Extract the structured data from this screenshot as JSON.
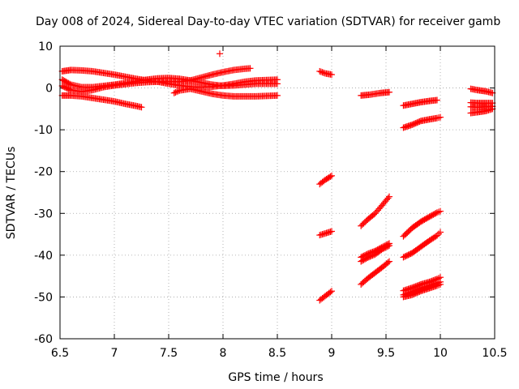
{
  "chart_data": {
    "type": "scatter",
    "title": "Day 008 of 2024, Sidereal Day-to-day VTEC variation (SDTVAR) for receiver gamb",
    "xlabel": "GPS time / hours",
    "ylabel": "SDTVAR / TECUs",
    "xlim": [
      6.5,
      10.5
    ],
    "ylim": [
      -60,
      10
    ],
    "xticks": [
      "6.5",
      "7",
      "7.5",
      "8",
      "8.5",
      "9",
      "9.5",
      "10",
      "10.5"
    ],
    "yticks": [
      "10",
      "0",
      "-10",
      "-20",
      "-30",
      "-40",
      "-50",
      "-60"
    ],
    "grid": true,
    "marker": "+",
    "color": "#ff0000",
    "series": [
      {
        "name": "trace-01",
        "points": [
          [
            6.52,
            4.0
          ],
          [
            6.6,
            4.3
          ],
          [
            6.7,
            4.2
          ],
          [
            6.8,
            4.0
          ],
          [
            6.9,
            3.6
          ],
          [
            7.0,
            3.2
          ],
          [
            7.1,
            2.7
          ],
          [
            7.2,
            2.2
          ],
          [
            7.3,
            1.8
          ],
          [
            7.4,
            1.5
          ],
          [
            7.5,
            1.0
          ],
          [
            7.6,
            0.6
          ],
          [
            7.7,
            0.3
          ],
          [
            7.8,
            0.2
          ],
          [
            7.9,
            0.3
          ],
          [
            8.0,
            0.6
          ],
          [
            8.1,
            1.0
          ],
          [
            8.2,
            1.5
          ],
          [
            8.3,
            1.8
          ],
          [
            8.4,
            1.9
          ],
          [
            8.5,
            2.0
          ]
        ]
      },
      {
        "name": "trace-02",
        "points": [
          [
            6.52,
            2.0
          ],
          [
            6.6,
            0.8
          ],
          [
            6.7,
            0.2
          ],
          [
            6.8,
            0.2
          ],
          [
            6.9,
            0.5
          ],
          [
            7.0,
            0.8
          ],
          [
            7.1,
            1.2
          ],
          [
            7.2,
            1.6
          ],
          [
            7.3,
            2.0
          ],
          [
            7.4,
            2.3
          ],
          [
            7.5,
            2.4
          ],
          [
            7.6,
            2.2
          ],
          [
            7.7,
            1.8
          ],
          [
            7.8,
            1.3
          ],
          [
            7.9,
            0.8
          ],
          [
            8.0,
            0.5
          ],
          [
            8.1,
            0.6
          ],
          [
            8.2,
            0.8
          ],
          [
            8.3,
            1.0
          ],
          [
            8.4,
            1.0
          ],
          [
            8.5,
            1.0
          ]
        ]
      },
      {
        "name": "trace-03",
        "points": [
          [
            6.52,
            0.5
          ],
          [
            6.6,
            -0.5
          ],
          [
            6.7,
            -0.9
          ],
          [
            6.8,
            -0.5
          ],
          [
            6.9,
            0.2
          ],
          [
            7.0,
            0.6
          ],
          [
            7.1,
            0.9
          ],
          [
            7.2,
            1.2
          ],
          [
            7.3,
            1.4
          ],
          [
            7.4,
            1.5
          ],
          [
            7.5,
            1.5
          ],
          [
            7.6,
            1.5
          ],
          [
            7.7,
            1.8
          ],
          [
            7.8,
            2.5
          ],
          [
            7.9,
            3.2
          ],
          [
            8.0,
            3.8
          ],
          [
            8.1,
            4.3
          ],
          [
            8.2,
            4.6
          ],
          [
            8.25,
            4.7
          ]
        ]
      },
      {
        "name": "trace-04",
        "points": [
          [
            6.52,
            -1.8
          ],
          [
            6.6,
            -1.8
          ],
          [
            6.7,
            -2.0
          ],
          [
            6.8,
            -2.4
          ],
          [
            6.9,
            -2.8
          ],
          [
            7.0,
            -3.2
          ],
          [
            7.1,
            -3.8
          ],
          [
            7.2,
            -4.3
          ],
          [
            7.25,
            -4.6
          ]
        ]
      },
      {
        "name": "trace-05",
        "points": [
          [
            7.55,
            -1.2
          ],
          [
            7.6,
            -0.6
          ],
          [
            7.7,
            -0.2
          ],
          [
            7.8,
            -0.8
          ],
          [
            7.9,
            -1.4
          ],
          [
            8.0,
            -1.8
          ],
          [
            8.1,
            -2.0
          ],
          [
            8.2,
            -2.0
          ],
          [
            8.3,
            -2.0
          ],
          [
            8.4,
            -1.9
          ],
          [
            8.5,
            -1.8
          ]
        ]
      },
      {
        "name": "trace-06",
        "points": [
          [
            7.97,
            8.2
          ]
        ]
      },
      {
        "name": "trace-07",
        "points": [
          [
            8.89,
            4.0
          ],
          [
            8.94,
            3.5
          ],
          [
            9.0,
            3.2
          ]
        ]
      },
      {
        "name": "trace-08",
        "points": [
          [
            8.89,
            -23.0
          ],
          [
            8.94,
            -22.0
          ],
          [
            9.0,
            -21.0
          ]
        ]
      },
      {
        "name": "trace-09",
        "points": [
          [
            8.89,
            -35.2
          ],
          [
            8.94,
            -34.8
          ],
          [
            9.0,
            -34.3
          ]
        ]
      },
      {
        "name": "trace-10",
        "points": [
          [
            8.89,
            -50.8
          ],
          [
            8.94,
            -49.8
          ],
          [
            9.0,
            -48.6
          ]
        ]
      },
      {
        "name": "trace-11",
        "points": [
          [
            9.27,
            -1.8
          ],
          [
            9.35,
            -1.6
          ],
          [
            9.45,
            -1.2
          ],
          [
            9.53,
            -1.0
          ]
        ]
      },
      {
        "name": "trace-12",
        "points": [
          [
            9.27,
            -33.0
          ],
          [
            9.33,
            -31.5
          ],
          [
            9.4,
            -30.0
          ],
          [
            9.45,
            -28.5
          ],
          [
            9.53,
            -26.0
          ]
        ]
      },
      {
        "name": "trace-13",
        "points": [
          [
            9.27,
            -41.5
          ],
          [
            9.33,
            -40.6
          ],
          [
            9.4,
            -39.8
          ],
          [
            9.47,
            -38.5
          ],
          [
            9.53,
            -37.7
          ]
        ]
      },
      {
        "name": "trace-14",
        "points": [
          [
            9.27,
            -40.5
          ],
          [
            9.33,
            -39.7
          ],
          [
            9.4,
            -39.0
          ],
          [
            9.47,
            -38.0
          ],
          [
            9.53,
            -37.2
          ]
        ]
      },
      {
        "name": "trace-15",
        "points": [
          [
            9.27,
            -47.0
          ],
          [
            9.33,
            -45.6
          ],
          [
            9.4,
            -44.2
          ],
          [
            9.47,
            -42.8
          ],
          [
            9.53,
            -41.5
          ]
        ]
      },
      {
        "name": "trace-16",
        "points": [
          [
            9.66,
            -4.2
          ],
          [
            9.74,
            -3.8
          ],
          [
            9.82,
            -3.4
          ],
          [
            9.9,
            -3.1
          ],
          [
            9.97,
            -2.9
          ]
        ]
      },
      {
        "name": "trace-17",
        "points": [
          [
            9.66,
            -9.5
          ],
          [
            9.74,
            -8.8
          ],
          [
            9.82,
            -7.9
          ],
          [
            9.9,
            -7.5
          ],
          [
            9.97,
            -7.2
          ],
          [
            10.0,
            -7.0
          ]
        ]
      },
      {
        "name": "trace-18",
        "points": [
          [
            9.66,
            -35.5
          ],
          [
            9.74,
            -33.5
          ],
          [
            9.82,
            -32.0
          ],
          [
            9.9,
            -30.8
          ],
          [
            9.97,
            -29.8
          ],
          [
            10.0,
            -29.5
          ]
        ]
      },
      {
        "name": "trace-19",
        "points": [
          [
            9.66,
            -40.5
          ],
          [
            9.74,
            -39.5
          ],
          [
            9.82,
            -38.0
          ],
          [
            9.9,
            -36.5
          ],
          [
            9.97,
            -35.3
          ],
          [
            10.0,
            -34.5
          ]
        ]
      },
      {
        "name": "trace-20",
        "points": [
          [
            9.66,
            -48.5
          ],
          [
            9.74,
            -47.8
          ],
          [
            9.82,
            -47.0
          ],
          [
            9.9,
            -46.4
          ],
          [
            9.97,
            -45.7
          ],
          [
            10.0,
            -45.3
          ]
        ]
      },
      {
        "name": "trace-21",
        "points": [
          [
            9.66,
            -49.5
          ],
          [
            9.74,
            -48.8
          ],
          [
            9.82,
            -48.0
          ],
          [
            9.9,
            -47.3
          ],
          [
            9.97,
            -46.7
          ],
          [
            10.0,
            -46.4
          ]
        ]
      },
      {
        "name": "trace-22",
        "points": [
          [
            9.66,
            -50.0
          ],
          [
            9.74,
            -49.5
          ],
          [
            9.82,
            -48.6
          ],
          [
            9.9,
            -47.9
          ],
          [
            9.97,
            -47.3
          ],
          [
            10.0,
            -47.0
          ]
        ]
      },
      {
        "name": "trace-23",
        "points": [
          [
            10.28,
            -0.2
          ],
          [
            10.34,
            -0.5
          ],
          [
            10.42,
            -0.8
          ],
          [
            10.48,
            -1.2
          ]
        ]
      },
      {
        "name": "trace-24",
        "points": [
          [
            10.28,
            -3.5
          ],
          [
            10.34,
            -3.6
          ],
          [
            10.42,
            -3.6
          ],
          [
            10.48,
            -3.6
          ]
        ]
      },
      {
        "name": "trace-25",
        "points": [
          [
            10.28,
            -4.5
          ],
          [
            10.34,
            -4.6
          ],
          [
            10.42,
            -4.5
          ],
          [
            10.48,
            -4.4
          ]
        ]
      },
      {
        "name": "trace-26",
        "points": [
          [
            10.28,
            -6.0
          ],
          [
            10.34,
            -5.8
          ],
          [
            10.42,
            -5.5
          ],
          [
            10.48,
            -5.0
          ]
        ]
      }
    ]
  }
}
